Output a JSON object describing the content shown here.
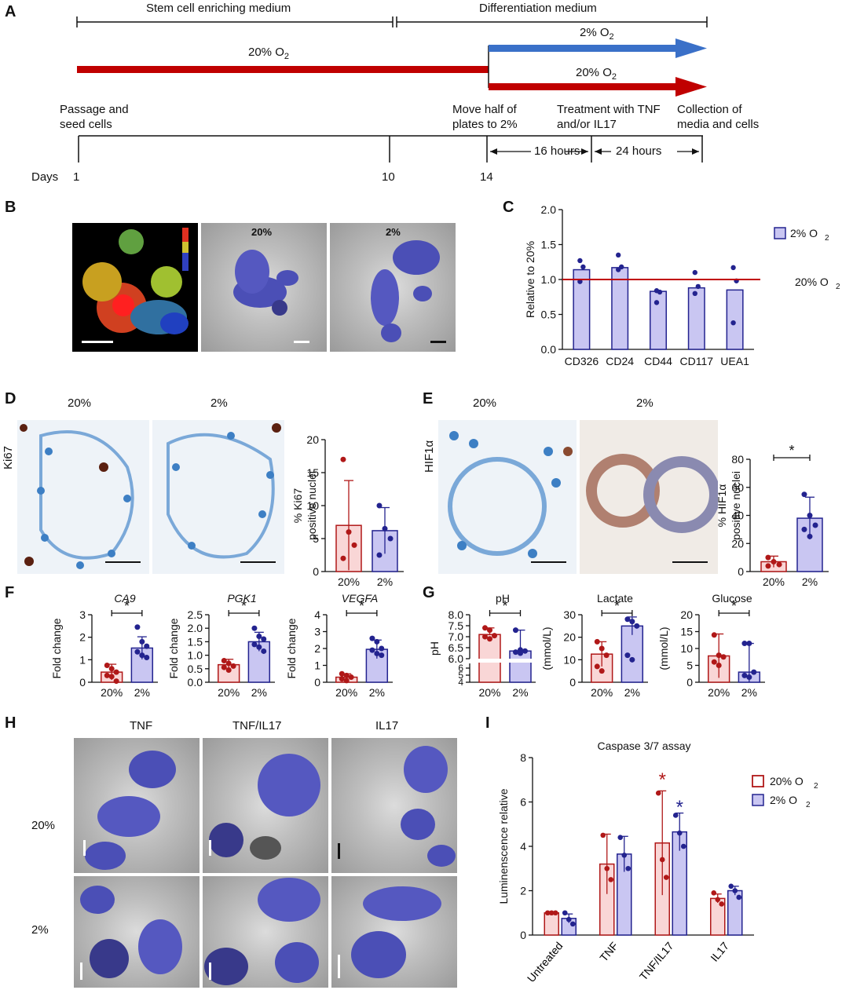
{
  "colors": {
    "red": "#c00000",
    "blue": "#3a70c8",
    "bar_red": "#f9d6d6",
    "bar_blue": "#c9c6f2",
    "dot_red": "#b01818",
    "dot_blue": "#23238f"
  },
  "panel_labels": [
    "A",
    "B",
    "C",
    "D",
    "E",
    "F",
    "G",
    "H",
    "I"
  ],
  "panelA": {
    "stem_medium": "Stem cell enriching medium",
    "diff_medium": "Differentiation medium",
    "o2_20_main": "20% O",
    "o2_2": "2% O",
    "o2_20": "20% O",
    "sub2": "2",
    "passage": "Passage and seed cells",
    "move": "Move half of plates to 2%",
    "treat": "Treatment with TNF and/or IL17",
    "collect": "Collection of media and cells",
    "days": "Days",
    "d1": "1",
    "d10": "10",
    "d14": "14",
    "h16": "16 hours",
    "h24": "24 hours"
  },
  "panelB": {
    "l20": "20%",
    "l2": "2%"
  },
  "panelD": {
    "top20": "20%",
    "top2": "2%",
    "stain": "Ki67"
  },
  "panelE": {
    "top20": "20%",
    "top2": "2%",
    "stain": "HIF1α"
  },
  "panelH": {
    "c1": "TNF",
    "c2": "TNF/IL17",
    "c3": "IL17",
    "r1": "20%",
    "r2": "2%"
  },
  "chart_data": [
    {
      "id": "C",
      "type": "bar",
      "categories": [
        "CD326",
        "CD24",
        "CD44",
        "CD117",
        "UEA1"
      ],
      "values": [
        1.14,
        1.17,
        0.83,
        0.88,
        0.85
      ],
      "points": [
        [
          1.27,
          1.18,
          0.97
        ],
        [
          1.35,
          1.18,
          1.14
        ],
        [
          0.84,
          0.82,
          0.67
        ],
        [
          1.1,
          0.9,
          0.8
        ],
        [
          1.17,
          0.98,
          0.38
        ]
      ],
      "ylabel": "Relative to 20%",
      "ylim": [
        0,
        2.0
      ],
      "yticks": [
        "0.0",
        "0.5",
        "1.0",
        "1.5",
        "2.0"
      ],
      "ref_line": 1.0,
      "ref_label": "20% O",
      "legend": "2% O",
      "sub": "2"
    },
    {
      "id": "D",
      "type": "bar",
      "categories": [
        "20%",
        "2%"
      ],
      "values": [
        7,
        6.2
      ],
      "err": [
        6.8,
        3.5
      ],
      "points": [
        [
          17,
          6,
          4,
          2
        ],
        [
          10,
          6.5,
          5,
          2.5
        ]
      ],
      "ylabel": "% Ki67 positive nuclei",
      "ylabel1": "% Ki67",
      "ylabel2": "positive nuclei",
      "ylim": [
        0,
        20
      ],
      "yticks": [
        "0",
        "5",
        "10",
        "15",
        "20"
      ]
    },
    {
      "id": "E",
      "type": "bar",
      "categories": [
        "20%",
        "2%"
      ],
      "values": [
        7,
        38
      ],
      "err": [
        4,
        15
      ],
      "points": [
        [
          10,
          7,
          5,
          4
        ],
        [
          55,
          40,
          33,
          30,
          25
        ]
      ],
      "ylabel": "% HIF1α positive nuclei",
      "ylabel1": "% HIF1α",
      "ylabel2": "positive nuclei",
      "ylim": [
        0,
        80
      ],
      "yticks": [
        "0",
        "20",
        "40",
        "60",
        "80"
      ],
      "sig": "*"
    },
    {
      "id": "F1",
      "type": "bar",
      "title": "CA9",
      "categories": [
        "20%",
        "2%"
      ],
      "values": [
        0.45,
        1.52
      ],
      "err": [
        0.35,
        0.5
      ],
      "points": [
        [
          0.75,
          0.6,
          0.45,
          0.3,
          0.25,
          0.05
        ],
        [
          2.45,
          1.8,
          1.6,
          1.35,
          1.2,
          1.1
        ]
      ],
      "ylabel": "Fold change",
      "ylim": [
        0,
        3
      ],
      "yticks": [
        "0",
        "1",
        "2",
        "3"
      ],
      "sig": "*"
    },
    {
      "id": "F2",
      "type": "bar",
      "title": "PGK1",
      "categories": [
        "20%",
        "2%"
      ],
      "values": [
        0.65,
        1.5
      ],
      "err": [
        0.2,
        0.35
      ],
      "points": [
        [
          0.8,
          0.7,
          0.6,
          0.55,
          0.45
        ],
        [
          2.0,
          1.7,
          1.6,
          1.4,
          1.3,
          1.15
        ]
      ],
      "ylabel": "Fold change",
      "ylim": [
        0,
        2.5
      ],
      "yticks": [
        "0.0",
        "0.5",
        "1.0",
        "1.5",
        "2.0",
        "2.5"
      ],
      "sig": "*"
    },
    {
      "id": "F3",
      "type": "bar",
      "title": "VEGFA",
      "categories": [
        "20%",
        "2%"
      ],
      "values": [
        0.3,
        1.95
      ],
      "err": [
        0.2,
        0.55
      ],
      "points": [
        [
          0.5,
          0.4,
          0.3,
          0.2,
          0.1
        ],
        [
          2.6,
          2.4,
          2.0,
          1.9,
          1.7,
          1.6
        ]
      ],
      "ylabel": "Fold change",
      "ylim": [
        0,
        4
      ],
      "yticks": [
        "0",
        "1",
        "2",
        "3",
        "4"
      ],
      "sig": "*"
    },
    {
      "id": "G1",
      "type": "bar",
      "title": "pH",
      "categories": [
        "20%",
        "2%"
      ],
      "values": [
        7.1,
        6.35
      ],
      "err": [
        0.3,
        0.95
      ],
      "points": [
        [
          7.4,
          7.3,
          7.05,
          7.0,
          6.9
        ],
        [
          7.3,
          6.4,
          6.35,
          6.3,
          6.25
        ]
      ],
      "ylabel": "pH",
      "ylim": [
        6,
        8
      ],
      "yticks": [
        "6.0",
        "6.5",
        "7.0",
        "7.5",
        "8.0"
      ],
      "lower_ticks": [
        "4",
        "5",
        "6"
      ],
      "sig": "*"
    },
    {
      "id": "G2",
      "type": "bar",
      "title": "Lactate",
      "categories": [
        "20%",
        "2%"
      ],
      "values": [
        12.5,
        25
      ],
      "err": [
        5.5,
        4
      ],
      "points": [
        [
          18,
          15,
          12,
          7,
          5
        ],
        [
          28,
          27,
          25,
          12,
          10
        ]
      ],
      "ylabel": "(mmol/L)",
      "ylim": [
        0,
        30
      ],
      "yticks": [
        "0",
        "10",
        "20",
        "30"
      ],
      "sig": "*"
    },
    {
      "id": "G3",
      "type": "bar",
      "title": "Glucose",
      "categories": [
        "20%",
        "2%"
      ],
      "values": [
        7.8,
        3
      ],
      "err": [
        6.5,
        8.5
      ],
      "points": [
        [
          14,
          8,
          7.5,
          6,
          5
        ],
        [
          11.5,
          11.5,
          3,
          2,
          1.5
        ]
      ],
      "ylabel": "(mmol/L)",
      "ylim": [
        0,
        20
      ],
      "yticks": [
        "0",
        "5",
        "10",
        "15",
        "20"
      ],
      "sig": "*"
    },
    {
      "id": "I",
      "type": "bar",
      "title": "Caspase 3/7 assay",
      "categories": [
        "Untreated",
        "TNF",
        "TNF/IL17",
        "IL17"
      ],
      "series": [
        {
          "name": "20% O2",
          "values": [
            1.0,
            3.2,
            4.15,
            1.65
          ],
          "err": [
            0.05,
            1.35,
            2.35,
            0.2
          ],
          "points": [
            [
              1,
              1,
              1
            ],
            [
              4.5,
              3.0,
              2.5
            ],
            [
              6.4,
              3.4,
              2.6
            ]
          ]
        },
        {
          "name": "2% O2",
          "values": [
            0.75,
            3.65,
            4.65,
            2.0
          ],
          "err": [
            0.2,
            0.8,
            0.85,
            0.2
          ],
          "points": [
            [
              1.0,
              0.7,
              0.5
            ],
            [
              4.4,
              3.6,
              3.0
            ],
            [
              5.4,
              4.6,
              4.0
            ]
          ]
        }
      ],
      "points_il17": [
        [
          1.9,
          1.6,
          1.4
        ],
        [
          2.2,
          2.0,
          1.7
        ]
      ],
      "ylabel": "Luminenscence relative",
      "ylim": [
        0,
        8
      ],
      "yticks": [
        "0",
        "2",
        "4",
        "6",
        "8"
      ],
      "legend": [
        "20% O",
        "2% O"
      ],
      "sub": "2",
      "sig": [
        "*",
        "*"
      ]
    }
  ]
}
